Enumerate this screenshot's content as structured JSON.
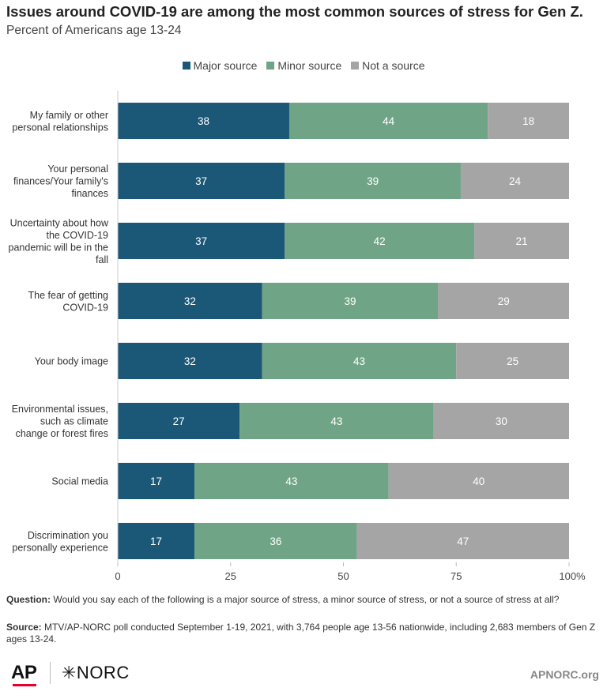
{
  "title": "Issues around COVID-19 are among the most common sources of stress for Gen Z.",
  "subtitle": "Percent of Americans age 13-24",
  "chart_data": {
    "type": "bar",
    "orientation": "horizontal",
    "stacked": true,
    "categories": [
      [
        "My family or other",
        "personal relationships"
      ],
      [
        "Your personal",
        "finances/Your family's",
        "finances"
      ],
      [
        "Uncertainty about how",
        "the COVID-19",
        "pandemic will be in the",
        "fall"
      ],
      [
        "The fear of getting",
        "COVID-19"
      ],
      [
        "Your body image"
      ],
      [
        "Environmental issues,",
        "such as climate",
        "change or forest fires"
      ],
      [
        "Social media"
      ],
      [
        "Discrimination you",
        "personally experience"
      ]
    ],
    "series": [
      {
        "name": "Major source",
        "color": "#1b5777",
        "values": [
          38,
          37,
          37,
          32,
          32,
          27,
          17,
          17
        ]
      },
      {
        "name": "Minor source",
        "color": "#6fa586",
        "values": [
          44,
          39,
          42,
          39,
          43,
          43,
          43,
          36
        ]
      },
      {
        "name": "Not a source",
        "color": "#a5a5a5",
        "values": [
          18,
          24,
          21,
          29,
          25,
          30,
          40,
          47
        ]
      }
    ],
    "xlim": [
      0,
      100
    ],
    "xticks": [
      "0",
      "25",
      "50",
      "75",
      "100%"
    ],
    "legend_position": "top-center",
    "grid": false
  },
  "footnotes": {
    "question_label": "Question:",
    "question_text": "Would you say each of the following is a major source of stress, a minor source of stress, or not a source of stress at all?",
    "source_label": "Source:",
    "source_text": "MTV/AP-NORC poll conducted September 1-19, 2021, with 3,764 people age 13-56 nationwide, including 2,683 members of Gen Z ages 13-24."
  },
  "branding": {
    "ap_logo": "AP",
    "norc_logo": "✳NORC",
    "site": "APNORC.org"
  }
}
